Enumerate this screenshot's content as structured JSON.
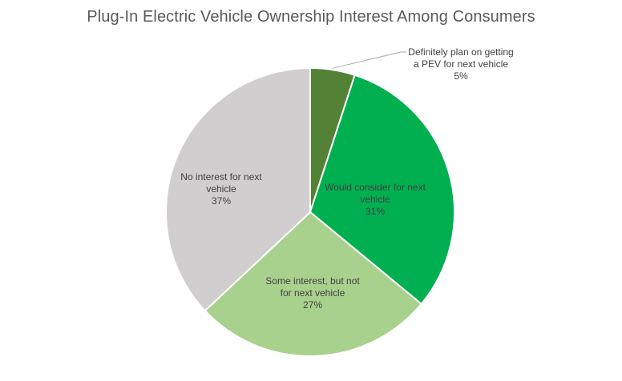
{
  "chart_data": {
    "type": "pie",
    "title": "Plug-In Electric Vehicle Ownership Interest Among Consumers",
    "slices": [
      {
        "label_lines": [
          "Definitely plan on getting",
          "a PEV for next vehicle"
        ],
        "value": 5,
        "value_label": "5%",
        "color": "#538135"
      },
      {
        "label_lines": [
          "Would consider for next",
          "vehicle"
        ],
        "value": 31,
        "value_label": "31%",
        "color": "#00b050"
      },
      {
        "label_lines": [
          "Some interest, but not",
          "for next vehicle"
        ],
        "value": 27,
        "value_label": "27%",
        "color": "#a9d18e"
      },
      {
        "label_lines": [
          "No interest for next",
          "vehicle"
        ],
        "value": 37,
        "value_label": "37%",
        "color": "#d0cece"
      }
    ],
    "legend": "none"
  }
}
